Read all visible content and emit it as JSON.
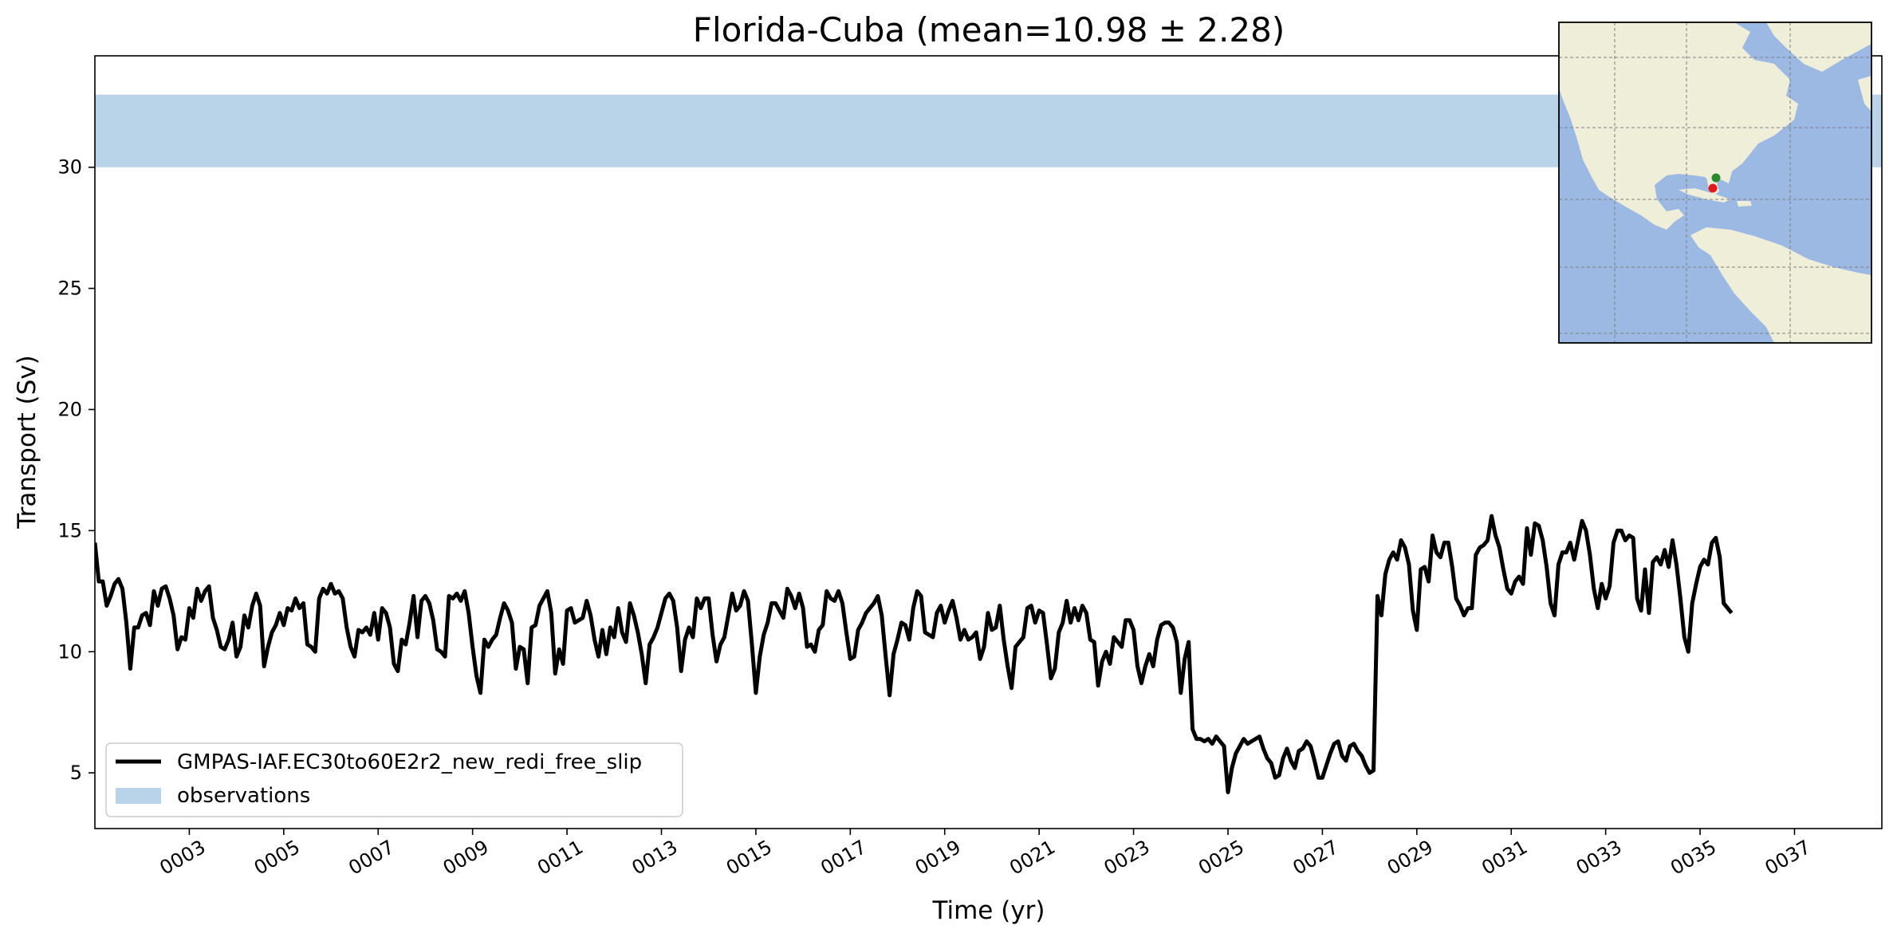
{
  "chart_data": {
    "type": "line",
    "title": "Florida-Cuba (mean=10.98 ± 2.28)",
    "xlabel": "Time (yr)",
    "ylabel": "Transport (Sv)",
    "xlim": [
      1,
      38.85
    ],
    "ylim": [
      2.7,
      34.6
    ],
    "x_ticks": [
      "0003",
      "0005",
      "0007",
      "0009",
      "0011",
      "0013",
      "0015",
      "0017",
      "0019",
      "0021",
      "0023",
      "0025",
      "0027",
      "0029",
      "0031",
      "0033",
      "0035",
      "0037"
    ],
    "x_tick_values": [
      3,
      5,
      7,
      9,
      11,
      13,
      15,
      17,
      19,
      21,
      23,
      25,
      27,
      29,
      31,
      33,
      35,
      37
    ],
    "y_ticks": [
      5,
      10,
      15,
      20,
      25,
      30
    ],
    "grid": false,
    "legend_position": "lower-left",
    "series": [
      {
        "name": "GMPAS-IAF.EC30to60E2r2_new_redi_free_slip",
        "color": "#000000",
        "y_sampling": "monthly, starting at year 1",
        "y": [
          14.5,
          12.9,
          12.9,
          11.9,
          12.3,
          12.8,
          13.0,
          12.6,
          11.2,
          9.3,
          11.0,
          11.0,
          11.5,
          11.6,
          11.1,
          12.5,
          11.9,
          12.6,
          12.7,
          12.2,
          11.5,
          10.1,
          10.6,
          10.5,
          11.8,
          11.4,
          12.6,
          12.1,
          12.5,
          12.7,
          11.4,
          10.9,
          10.2,
          10.1,
          10.5,
          11.2,
          9.8,
          10.2,
          11.5,
          11.0,
          11.9,
          12.4,
          11.9,
          9.4,
          10.2,
          10.8,
          11.1,
          11.6,
          11.1,
          11.8,
          11.7,
          12.2,
          11.8,
          12.0,
          10.3,
          10.2,
          10.0,
          12.2,
          12.6,
          12.4,
          12.8,
          12.4,
          12.5,
          12.2,
          11.0,
          10.2,
          9.8,
          10.9,
          10.8,
          11.0,
          10.7,
          11.6,
          10.5,
          11.8,
          11.6,
          11.0,
          9.5,
          9.2,
          10.5,
          10.3,
          11.2,
          12.3,
          10.6,
          12.1,
          12.3,
          12.0,
          11.3,
          10.1,
          10.0,
          9.8,
          12.3,
          12.2,
          12.4,
          12.1,
          12.5,
          11.6,
          10.2,
          9.0,
          8.3,
          10.5,
          10.2,
          10.5,
          10.7,
          11.4,
          12.0,
          11.7,
          11.2,
          9.3,
          10.2,
          10.1,
          8.7,
          11.0,
          11.1,
          11.9,
          12.2,
          12.5,
          11.6,
          9.1,
          10.1,
          9.5,
          11.7,
          11.8,
          11.2,
          11.3,
          11.4,
          12.1,
          11.5,
          10.5,
          9.8,
          10.9,
          9.9,
          11.0,
          10.6,
          11.8,
          10.8,
          10.4,
          12.0,
          11.5,
          10.8,
          9.9,
          8.7,
          10.3,
          10.6,
          11.0,
          11.6,
          12.2,
          12.4,
          12.1,
          11.0,
          9.2,
          10.5,
          11.0,
          10.6,
          12.2,
          11.8,
          12.2,
          12.2,
          10.7,
          9.6,
          10.3,
          10.6,
          11.5,
          12.4,
          11.7,
          11.9,
          12.5,
          12.1,
          10.3,
          8.3,
          9.8,
          10.7,
          11.2,
          12.0,
          12.0,
          11.7,
          11.4,
          12.6,
          12.3,
          11.8,
          12.4,
          11.8,
          10.2,
          10.3,
          10.0,
          10.9,
          11.1,
          12.5,
          12.2,
          12.1,
          12.5,
          12.0,
          10.8,
          9.7,
          9.8,
          10.9,
          11.2,
          11.6,
          11.8,
          12.0,
          12.3,
          11.5,
          9.8,
          8.2,
          9.9,
          10.5,
          11.2,
          11.1,
          10.5,
          11.8,
          12.5,
          12.3,
          10.8,
          10.7,
          10.6,
          11.6,
          11.9,
          11.2,
          11.7,
          12.1,
          11.4,
          10.5,
          10.9,
          10.5,
          10.6,
          10.8,
          9.7,
          10.2,
          11.6,
          10.9,
          11.0,
          11.9,
          10.5,
          9.4,
          8.5,
          10.2,
          10.4,
          10.6,
          11.8,
          11.9,
          11.2,
          11.7,
          11.6,
          10.3,
          8.9,
          9.3,
          10.8,
          11.2,
          12.1,
          11.2,
          11.8,
          11.3,
          11.9,
          11.6,
          10.5,
          10.4,
          8.6,
          9.6,
          10.0,
          9.5,
          10.6,
          10.4,
          10.2,
          11.3,
          11.3,
          10.9,
          9.4,
          8.7,
          9.4,
          9.9,
          9.4,
          10.5,
          11.1,
          11.2,
          11.2,
          11.0,
          10.4,
          8.3,
          9.7,
          10.4,
          6.8,
          6.4,
          6.4,
          6.3,
          6.4,
          6.2,
          6.5,
          6.3,
          6.1,
          4.2,
          5.2,
          5.8,
          6.1,
          6.4,
          6.2,
          6.3,
          6.4,
          6.5,
          6.0,
          5.6,
          5.4,
          4.8,
          4.9,
          5.6,
          6.0,
          5.5,
          5.2,
          5.9,
          6.0,
          6.3,
          6.1,
          5.5,
          4.8,
          4.8,
          5.3,
          5.8,
          6.2,
          6.3,
          5.7,
          5.5,
          6.1,
          6.2,
          5.9,
          5.7,
          5.3,
          5.0,
          5.1,
          12.3,
          11.5,
          13.2,
          13.8,
          14.1,
          13.8,
          14.6,
          14.3,
          13.6,
          11.7,
          10.9,
          13.4,
          13.5,
          12.9,
          14.8,
          14.1,
          13.9,
          14.5,
          14.5,
          13.5,
          12.2,
          11.9,
          11.5,
          11.8,
          11.8,
          14.0,
          14.3,
          14.4,
          14.6,
          15.6,
          14.8,
          14.3,
          13.4,
          12.6,
          12.4,
          12.9,
          13.1,
          12.8,
          15.1,
          14.0,
          15.3,
          15.2,
          14.6,
          13.5,
          12.0,
          11.5,
          13.6,
          14.1,
          14.1,
          14.5,
          13.8,
          14.6,
          15.4,
          15.0,
          14.0,
          12.6,
          11.8,
          12.8,
          12.2,
          12.7,
          14.5,
          15.0,
          15.0,
          14.6,
          14.8,
          14.7,
          12.2,
          11.7,
          13.4,
          11.6,
          13.7,
          13.9,
          13.6,
          14.2,
          13.5,
          14.6,
          13.6,
          12.2,
          10.6,
          10.0,
          12.0,
          12.8,
          13.5,
          13.8,
          13.6,
          14.5,
          14.7,
          13.9,
          12.0,
          11.8,
          11.6
        ]
      },
      {
        "name": "observations",
        "type": "band",
        "color": "#b9d4e8",
        "range": [
          30,
          33
        ]
      }
    ],
    "inset_map": {
      "ocean_color": "#9bb9e3",
      "land_color": "#efeed9",
      "markers": [
        {
          "color": "#2a8a2a",
          "description": "start point near Florida"
        },
        {
          "color": "#e21a1a",
          "description": "end point near Cuba"
        }
      ]
    }
  }
}
